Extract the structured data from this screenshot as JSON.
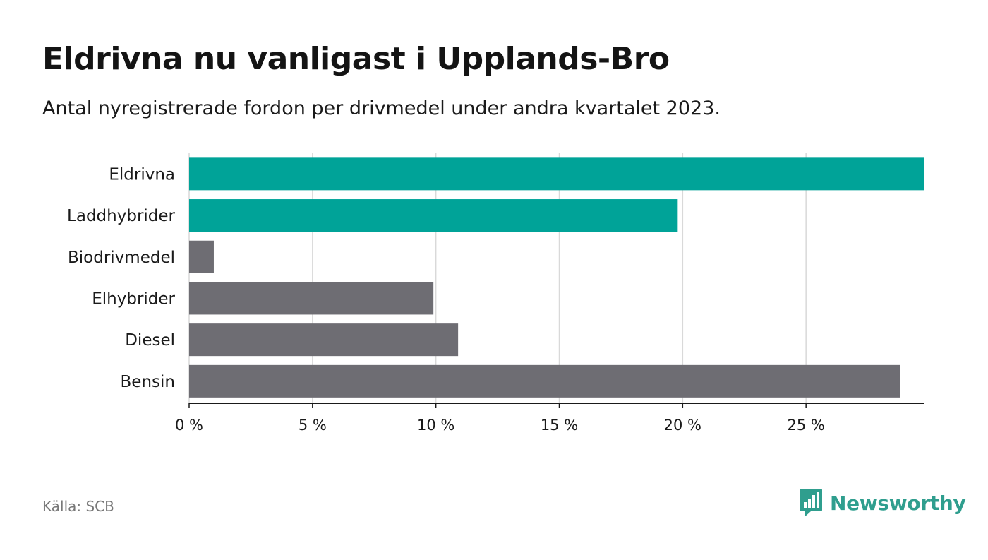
{
  "header": {
    "title": "Eldrivna nu vanligast i Upplands-Bro",
    "subtitle": "Antal nyregistrerade fordon per drivmedel under andra kvartalet 2023."
  },
  "footer": {
    "source": "Källa: SCB",
    "brand": "Newsworthy"
  },
  "colors": {
    "highlight": "#00a398",
    "default": "#6e6d73",
    "grid": "#d9d9d9",
    "axis": "#1a1a1a",
    "brand": "#2f9e8e"
  },
  "chart_data": {
    "type": "bar",
    "orientation": "horizontal",
    "title": "Eldrivna nu vanligast i Upplands-Bro",
    "xlabel": "",
    "ylabel": "",
    "xlim": [
      0,
      29.8
    ],
    "grid": true,
    "xticks": [
      0,
      5,
      10,
      15,
      20,
      25
    ],
    "xtick_labels": [
      "0 %",
      "5 %",
      "10 %",
      "15 %",
      "20 %",
      "25 %"
    ],
    "categories": [
      "Eldrivna",
      "Laddhybrider",
      "Biodrivmedel",
      "Elhybrider",
      "Diesel",
      "Bensin"
    ],
    "values": [
      29.8,
      19.8,
      1.0,
      9.9,
      10.9,
      28.8
    ],
    "highlight": [
      true,
      true,
      false,
      false,
      false,
      false
    ]
  }
}
